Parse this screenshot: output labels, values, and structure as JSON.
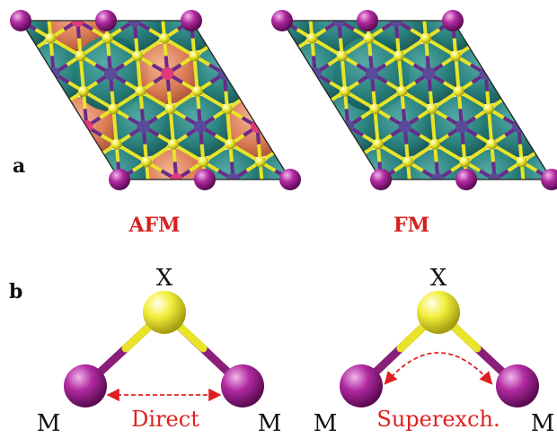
{
  "panel_a": {
    "label": "a",
    "left_caption": "AFM",
    "right_caption": "FM"
  },
  "panel_b": {
    "label": "b",
    "left": {
      "top_atom": "X",
      "left_atom": "M",
      "right_atom": "M",
      "interaction": "Direct"
    },
    "right": {
      "top_atom": "X",
      "left_atom": "M",
      "right_atom": "M",
      "interaction": "Superexch."
    }
  },
  "colors": {
    "metal_atom": "#a0208c",
    "ligand_atom": "#f2ee2a",
    "spin_down_lobe": "#d9754e",
    "spin_up_lobe": "#1f7a76",
    "arrow": "#e02020",
    "caption_red": "#d62020"
  }
}
